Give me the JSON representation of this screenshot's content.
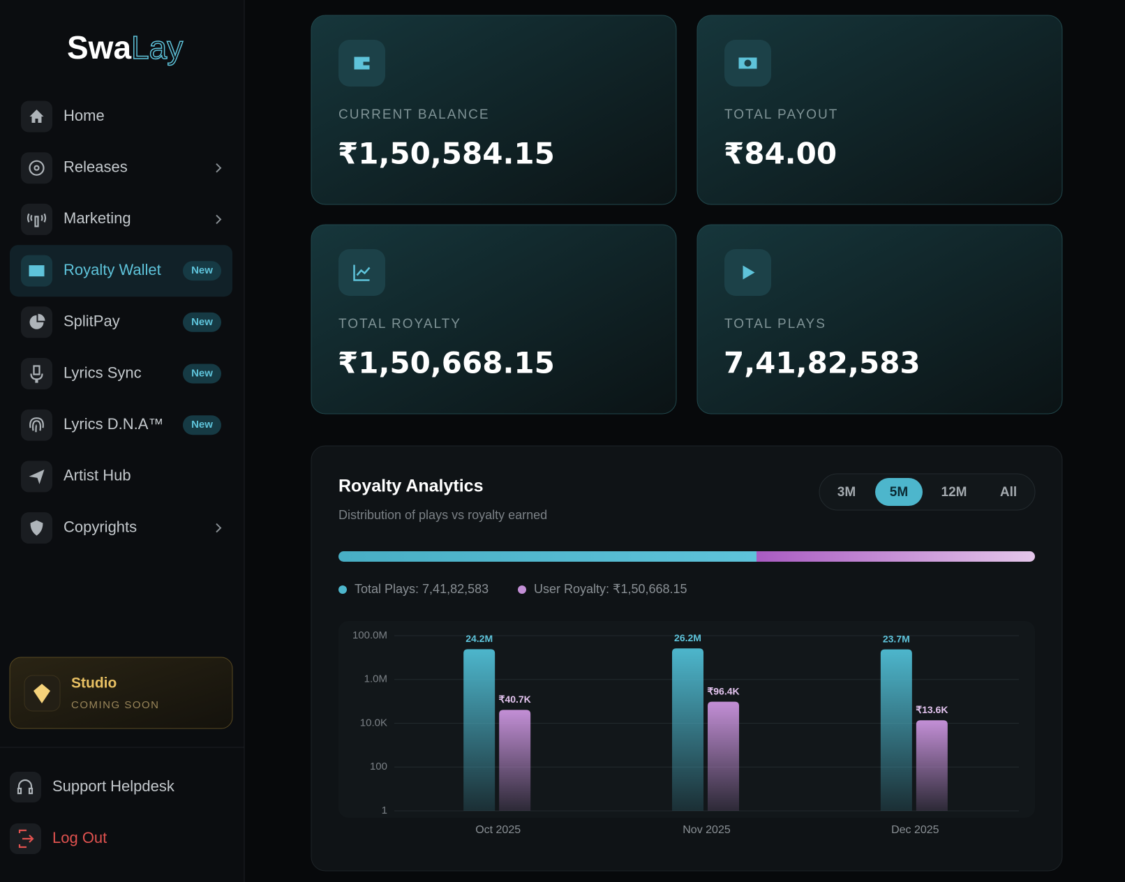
{
  "logo": {
    "part1": "Swa",
    "part2": "Lay"
  },
  "nav": [
    {
      "label": "Home"
    },
    {
      "label": "Releases",
      "has_submenu": true
    },
    {
      "label": "Marketing",
      "has_submenu": true
    },
    {
      "label": "Royalty Wallet",
      "badge": "New",
      "active": true
    },
    {
      "label": "SplitPay",
      "badge": "New"
    },
    {
      "label": "Lyrics Sync",
      "badge": "New"
    },
    {
      "label": "Lyrics D.N.A™",
      "badge": "New"
    },
    {
      "label": "Artist Hub"
    },
    {
      "label": "Copyrights",
      "has_submenu": true
    }
  ],
  "studio": {
    "title": "Studio",
    "subtitle": "COMING SOON"
  },
  "footer": [
    {
      "label": "Support Helpdesk"
    },
    {
      "label": "Log Out"
    }
  ],
  "cards": [
    {
      "label": "CURRENT BALANCE",
      "value": "₹1,50,584.15"
    },
    {
      "label": "TOTAL PAYOUT",
      "value": "₹84.00"
    },
    {
      "label": "TOTAL ROYALTY",
      "value": "₹1,50,668.15"
    },
    {
      "label": "TOTAL PLAYS",
      "value": "7,41,82,583"
    }
  ],
  "analytics": {
    "title": "Royalty Analytics",
    "subtitle": "Distribution of plays vs royalty earned",
    "ranges": [
      "3M",
      "5M",
      "12M",
      "All"
    ],
    "active_range": "5M"
  },
  "chart_data": {
    "type": "bar",
    "categories": [
      "Oct 2025",
      "Nov 2025",
      "Dec 2025"
    ],
    "series": [
      {
        "name": "Total Plays: 7,41,82,583",
        "color": "#4db6cc",
        "values": [
          24200000,
          26200000,
          23700000
        ],
        "value_labels": [
          "24.2M",
          "26.2M",
          "23.7M"
        ]
      },
      {
        "name": "User Royalty: ₹1,50,668.15",
        "color": "#c38fd6",
        "values": [
          40700,
          96400,
          13600
        ],
        "value_labels": [
          "₹40.7K",
          "₹96.4K",
          "₹13.6K"
        ]
      }
    ],
    "ylim": [
      1,
      100000000
    ],
    "yticks": [
      1,
      100,
      {
        "value": 10000,
        "label": "10.0K"
      },
      {
        "value": 1000000,
        "label": "1.0M"
      },
      {
        "value": 100000000,
        "label": "100.0M"
      }
    ],
    "log_scale": true,
    "grid": true
  }
}
